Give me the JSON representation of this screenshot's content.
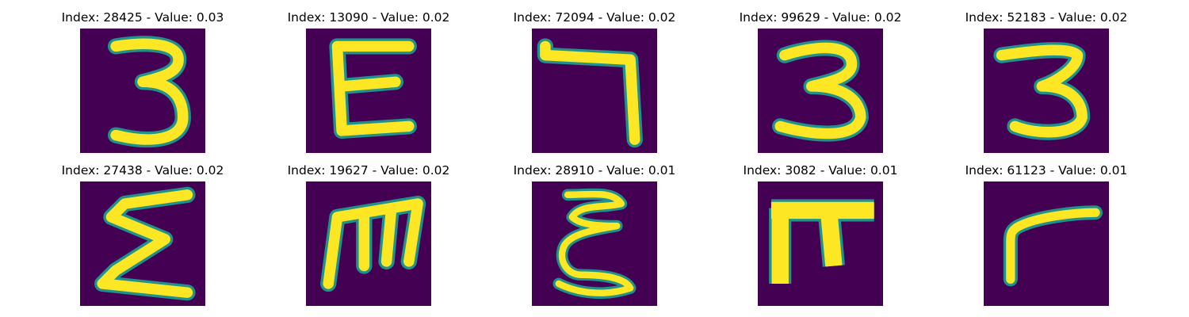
{
  "colors": {
    "background": "#440154",
    "stroke": "#fde725",
    "edge": "#21918c",
    "mid": "#5ec962"
  },
  "panels": [
    {
      "title": "Index: 28425 - Value: 0.03",
      "glyph": "digit-three"
    },
    {
      "title": "Index: 13090 - Value: 0.02",
      "glyph": "letter-epsilon"
    },
    {
      "title": "Index: 72094 - Value: 0.02",
      "glyph": "seven-like"
    },
    {
      "title": "Index: 99629 - Value: 0.02",
      "glyph": "digit-three"
    },
    {
      "title": "Index: 52183 - Value: 0.02",
      "glyph": "digit-three"
    },
    {
      "title": "Index: 27438 - Value: 0.02",
      "glyph": "sigma-like"
    },
    {
      "title": "Index: 19627 - Value: 0.02",
      "glyph": "m-like"
    },
    {
      "title": "Index: 28910 - Value: 0.01",
      "glyph": "epsilon-like"
    },
    {
      "title": "Index: 3082 - Value: 0.01",
      "glyph": "pi-like"
    },
    {
      "title": "Index: 61123 - Value: 0.01",
      "glyph": "gamma-like"
    }
  ]
}
